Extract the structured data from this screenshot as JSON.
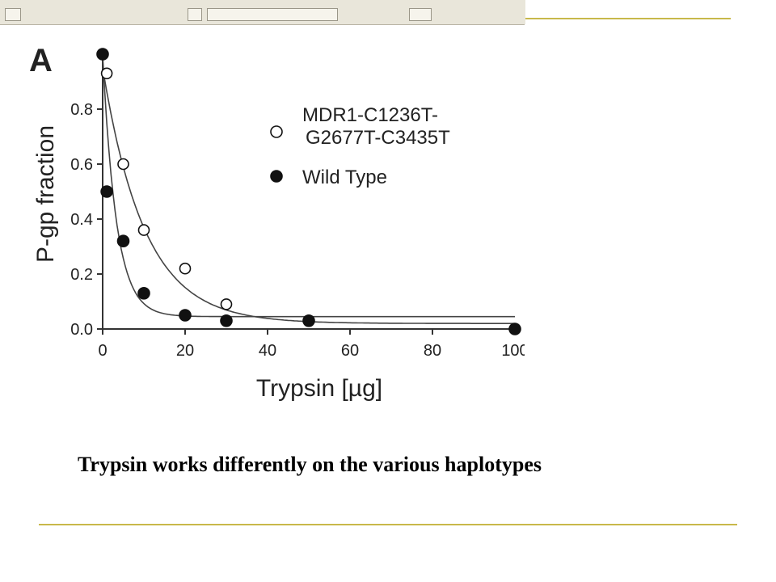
{
  "slide": {
    "caption": "Trypsin works differently on the various haplotypes",
    "rule_color": "#c8b84a"
  },
  "chart_data": {
    "type": "scatter",
    "panel_label": "A",
    "xlabel": "Trypsin [µg]",
    "ylabel": "P-gp  fraction",
    "xlim": [
      0,
      100
    ],
    "ylim": [
      0,
      1.0
    ],
    "xticks": [
      "0",
      "20",
      "40",
      "60",
      "80",
      "100"
    ],
    "yticks": [
      "0.0",
      "0.2",
      "0.4",
      "0.6",
      "0.8"
    ],
    "legend_position": "top-right",
    "series": [
      {
        "name": "MDR1-C1236T-\nG2677T-C3435T",
        "marker": "open-circle",
        "x": [
          1,
          5,
          10,
          20,
          30,
          50,
          100
        ],
        "y": [
          0.93,
          0.6,
          0.36,
          0.22,
          0.09,
          0.03,
          0.0
        ],
        "fit": {
          "a": 0.93,
          "k": 0.098,
          "c": 0.02
        }
      },
      {
        "name": "Wild Type",
        "marker": "filled-circle",
        "x": [
          0,
          1,
          5,
          10,
          20,
          30,
          50,
          100
        ],
        "y": [
          1.0,
          0.5,
          0.32,
          0.13,
          0.05,
          0.03,
          0.03,
          0.0
        ],
        "fit": {
          "a": 0.95,
          "k": 0.3,
          "c": 0.045
        }
      }
    ]
  }
}
